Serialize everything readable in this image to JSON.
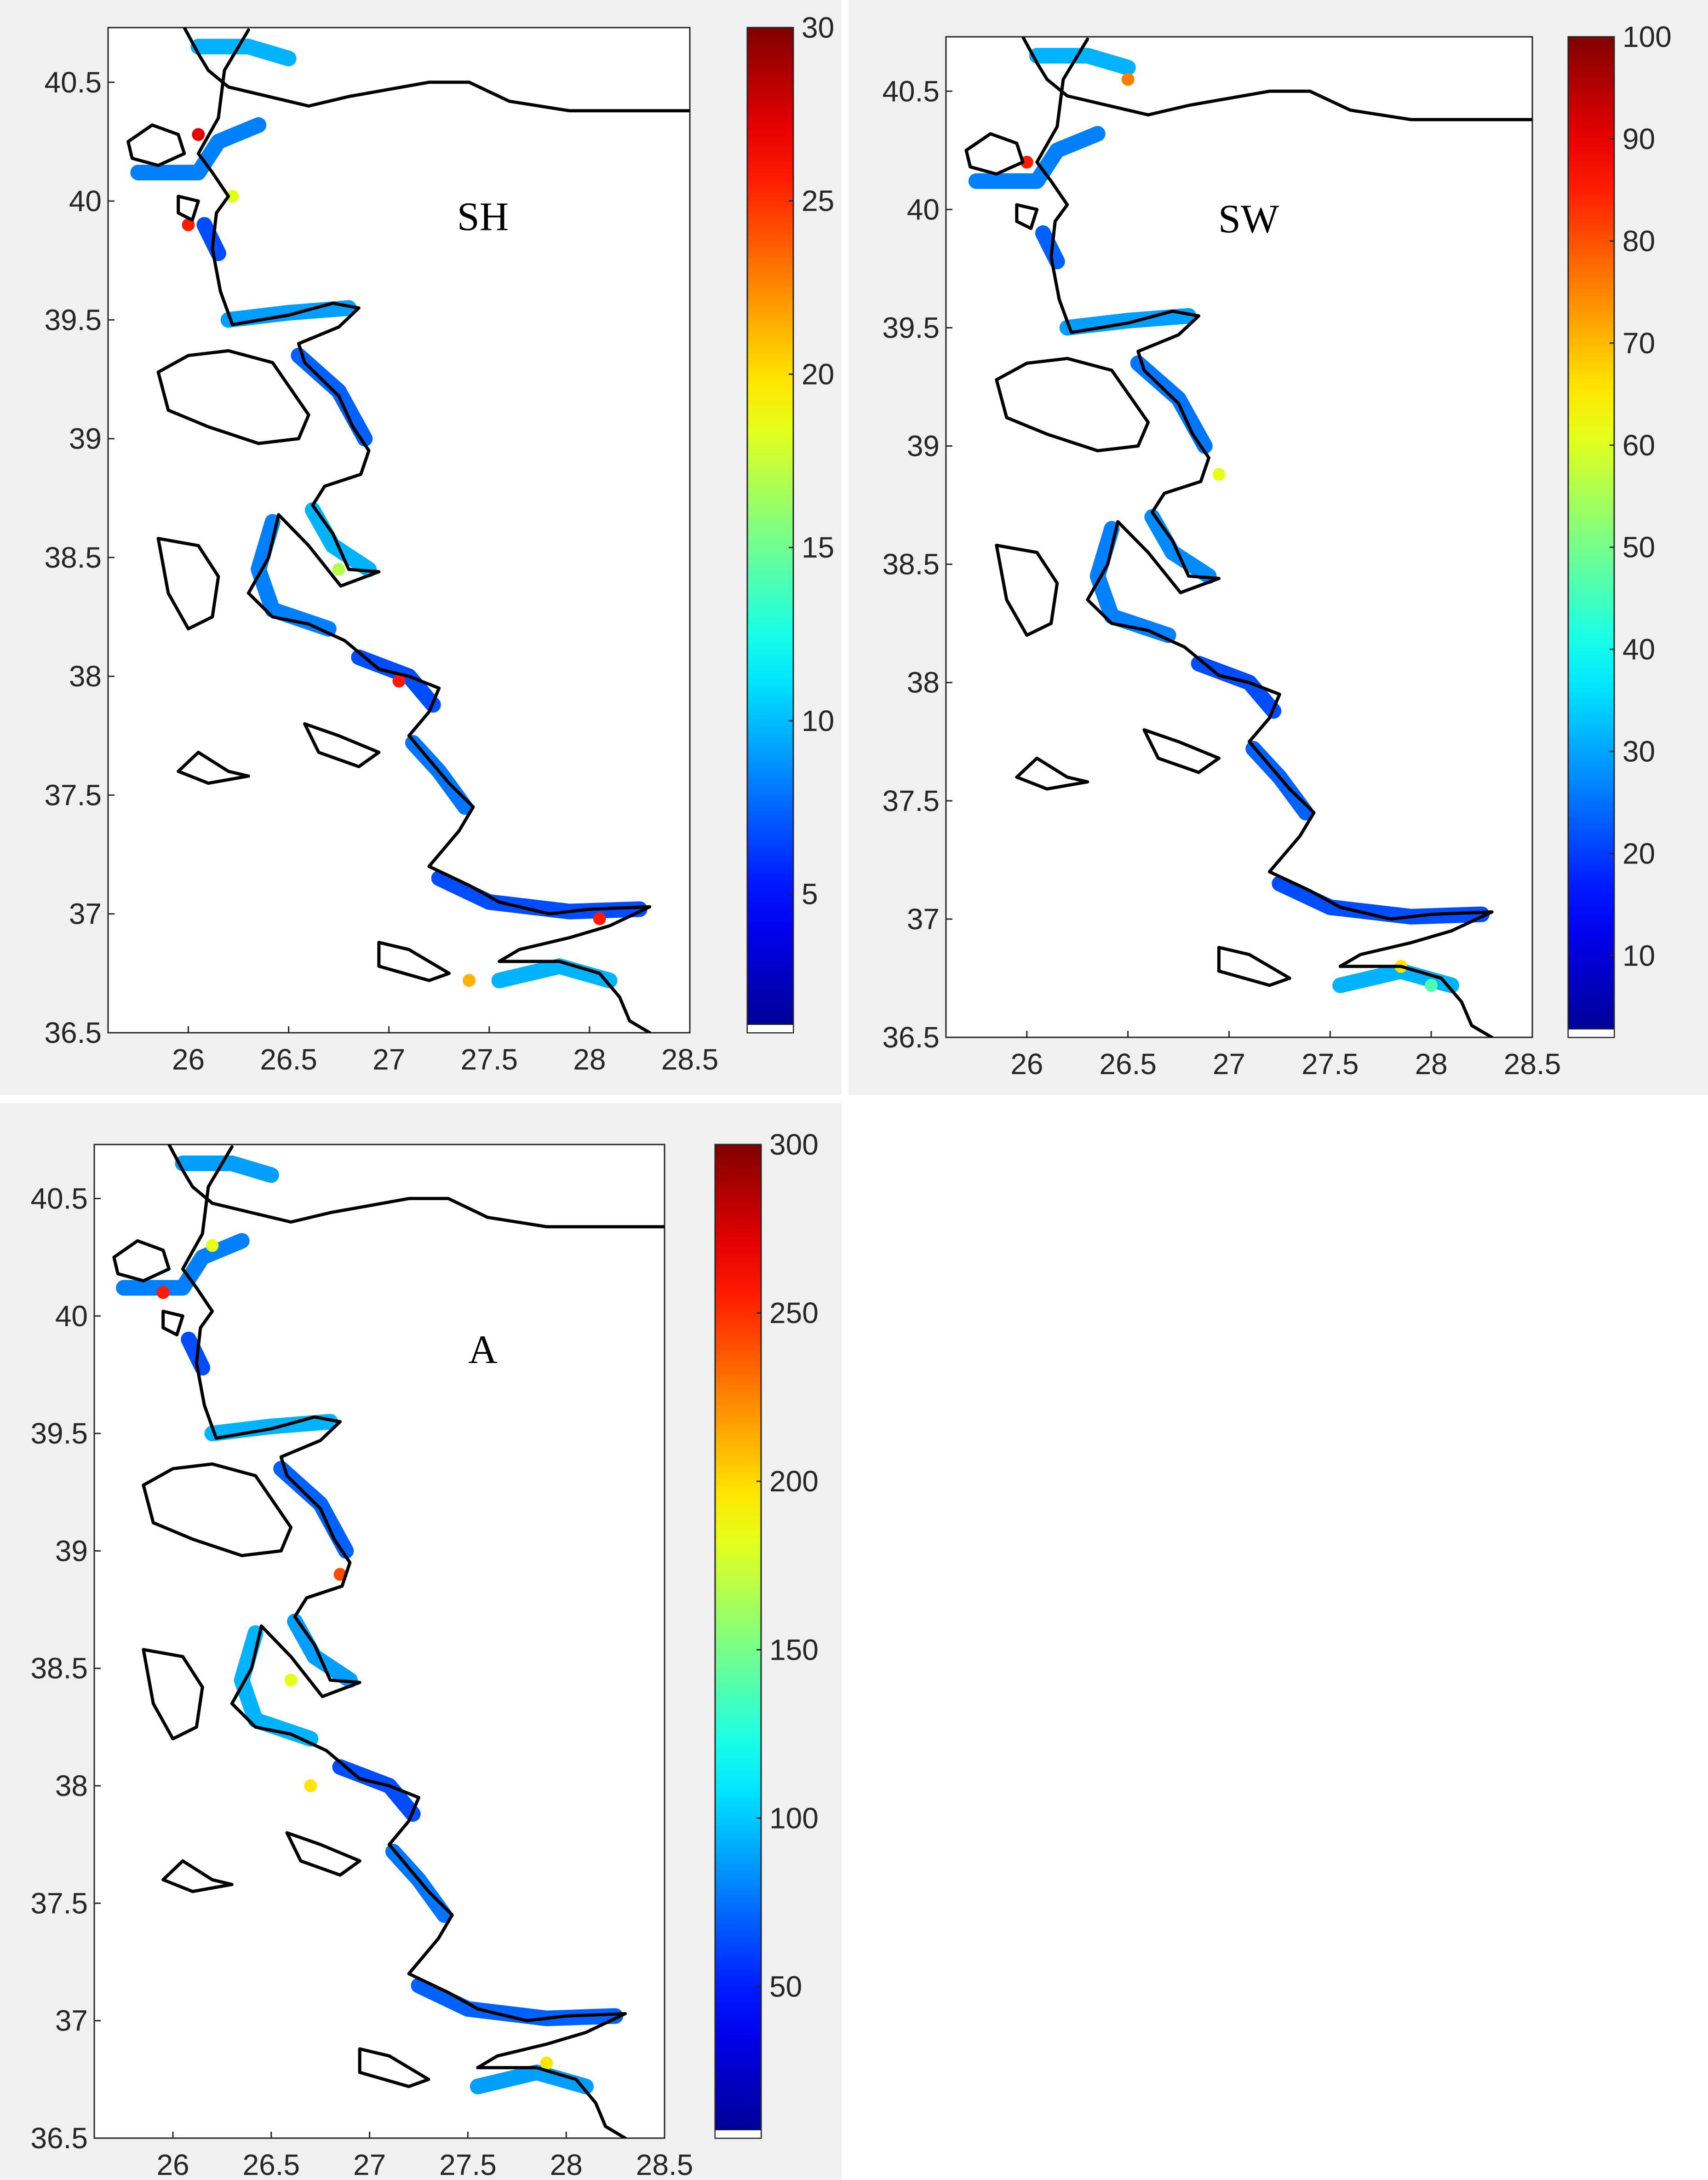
{
  "colors": {
    "figure_background": "#f0f0f0",
    "axes_background": "#ffffff",
    "coastline": "#000000",
    "colormap": "jet",
    "colormap_stops": [
      "#00008f",
      "#0000ff",
      "#00ffff",
      "#ffff00",
      "#ff0000",
      "#800000"
    ]
  },
  "axes": {
    "x_ticks": [
      "26",
      "26.5",
      "27",
      "27.5",
      "28",
      "28.5"
    ],
    "y_ticks": [
      "36.5",
      "37",
      "37.5",
      "38",
      "38.5",
      "39",
      "39.5",
      "40",
      "40.5"
    ],
    "x_values": [
      26,
      26.5,
      27,
      27.5,
      28,
      28.5
    ],
    "y_values": [
      36.5,
      37,
      37.5,
      38,
      38.5,
      39,
      39.5,
      40,
      40.5
    ],
    "xlim": [
      25.6,
      28.5
    ],
    "ylim": [
      36.5,
      40.73
    ]
  },
  "panels": [
    {
      "id": "sh",
      "label": "SH",
      "colorbar": {
        "min": 1,
        "max": 30,
        "ticks": [
          "5",
          "10",
          "15",
          "20",
          "25",
          "30"
        ],
        "tick_values": [
          5,
          10,
          15,
          20,
          25,
          30
        ]
      }
    },
    {
      "id": "sw",
      "label": "SW",
      "colorbar": {
        "min": 2,
        "max": 100,
        "ticks": [
          "10",
          "20",
          "30",
          "40",
          "50",
          "60",
          "70",
          "80",
          "90",
          "100"
        ],
        "tick_values": [
          10,
          20,
          30,
          40,
          50,
          60,
          70,
          80,
          90,
          100
        ]
      }
    },
    {
      "id": "a",
      "label": "A",
      "colorbar": {
        "min": 5,
        "max": 300,
        "ticks": [
          "50",
          "100",
          "150",
          "200",
          "250",
          "300"
        ],
        "tick_values": [
          50,
          100,
          150,
          200,
          250,
          300
        ]
      }
    }
  ]
}
